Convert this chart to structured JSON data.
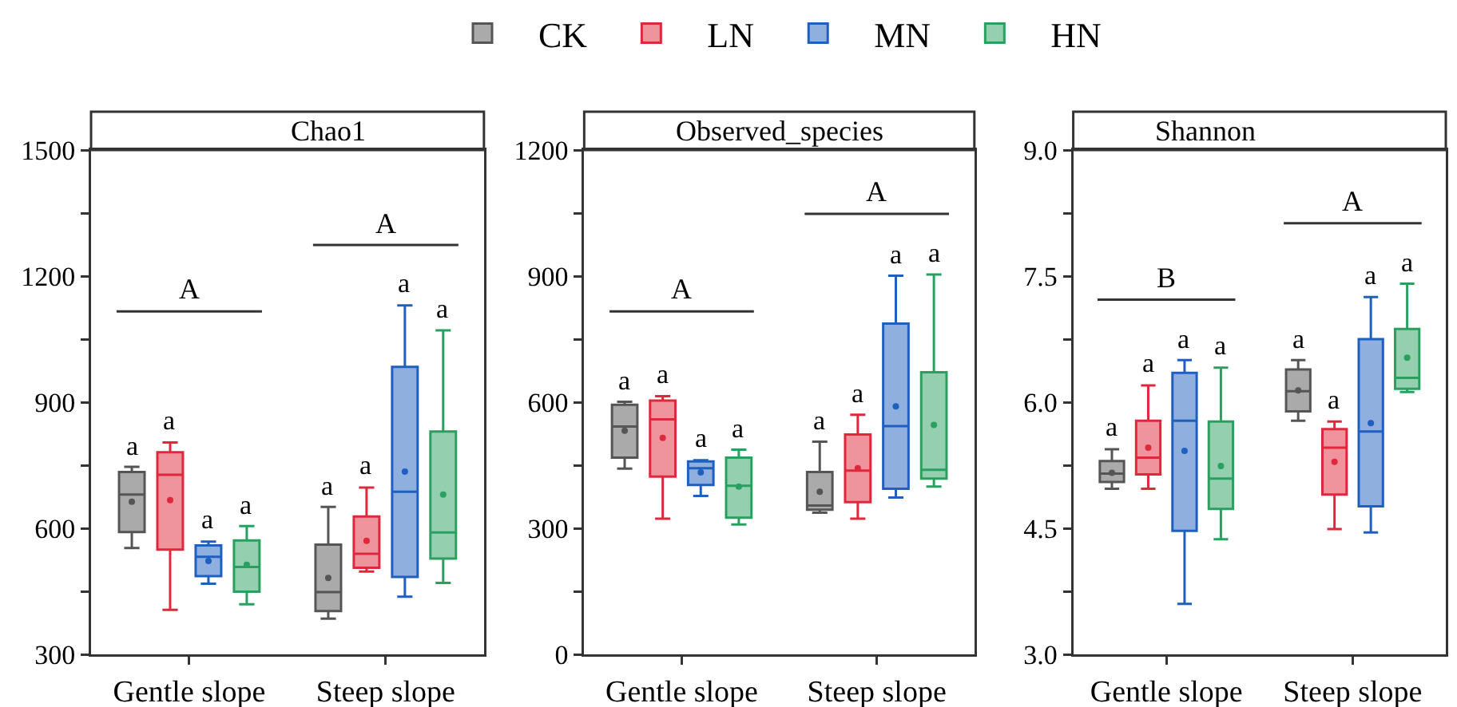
{
  "chart_data": [
    {
      "type": "box",
      "title": "Chao1",
      "categories": [
        "Gentle slope",
        "Steep slope"
      ],
      "legend": "top",
      "ylim": [
        300,
        1500
      ],
      "yticks": [
        300,
        {
          "value": 450,
          "label": null
        },
        600,
        {
          "value": 750,
          "label": null
        },
        900,
        {
          "value": 1050,
          "label": null
        },
        1200,
        {
          "value": 1350,
          "label": null
        },
        1500
      ],
      "series": [
        {
          "name": "CK",
          "color": "#555555",
          "value_labels": [
            "a",
            "a"
          ],
          "boxes": [
            {
              "low": 553,
              "q1": 591,
              "median": 680,
              "q3": 734,
              "high": 746,
              "mean": 663
            },
            {
              "low": 385,
              "q1": 403,
              "median": 448,
              "q3": 561,
              "high": 651,
              "mean": 482
            }
          ]
        },
        {
          "name": "LN",
          "color": "#e0283c",
          "value_labels": [
            "a",
            "a"
          ],
          "boxes": [
            {
              "low": 406,
              "q1": 549,
              "median": 727,
              "q3": 781,
              "high": 804,
              "mean": 667
            },
            {
              "low": 497,
              "q1": 506,
              "median": 539,
              "q3": 628,
              "high": 697,
              "mean": 570
            }
          ]
        },
        {
          "name": "MN",
          "color": "#1f5fbf",
          "value_labels": [
            "a",
            "a"
          ],
          "boxes": [
            {
              "low": 468,
              "q1": 486,
              "median": 532,
              "q3": 559,
              "high": 568,
              "mean": 522
            },
            {
              "low": 437,
              "q1": 484,
              "median": 687,
              "q3": 984,
              "high": 1130,
              "mean": 735
            }
          ]
        },
        {
          "name": "HN",
          "color": "#2aa060",
          "value_labels": [
            "a",
            "a"
          ],
          "boxes": [
            {
              "low": 419,
              "q1": 449,
              "median": 508,
              "q3": 571,
              "high": 605,
              "mean": 513
            },
            {
              "low": 470,
              "q1": 528,
              "median": 590,
              "q3": 830,
              "high": 1071,
              "mean": 680
            }
          ]
        }
      ],
      "annotations": [
        "A",
        "A"
      ]
    },
    {
      "type": "box",
      "title": "Observed_species",
      "categories": [
        "Gentle slope",
        "Steep slope"
      ],
      "legend": "top",
      "ylim": [
        0,
        1200
      ],
      "yticks": [
        0,
        {
          "value": 150,
          "label": null
        },
        300,
        {
          "value": 450,
          "label": null
        },
        600,
        {
          "value": 750,
          "label": null
        },
        900,
        {
          "value": 1050,
          "label": null
        },
        1200
      ],
      "series": [
        {
          "name": "CK",
          "color": "#555555",
          "value_labels": [
            "a",
            "a"
          ],
          "boxes": [
            {
              "low": 442,
              "q1": 468,
              "median": 542,
              "q3": 594,
              "high": 601,
              "mean": 532
            },
            {
              "low": 337,
              "q1": 344,
              "median": 354,
              "q3": 434,
              "high": 506,
              "mean": 387
            }
          ]
        },
        {
          "name": "LN",
          "color": "#e0283c",
          "value_labels": [
            "a",
            "a"
          ],
          "boxes": [
            {
              "low": 323,
              "q1": 423,
              "median": 559,
              "q3": 604,
              "high": 614,
              "mean": 515
            },
            {
              "low": 323,
              "q1": 362,
              "median": 437,
              "q3": 523,
              "high": 570,
              "mean": 443
            }
          ]
        },
        {
          "name": "MN",
          "color": "#1f5fbf",
          "value_labels": [
            "a",
            "a"
          ],
          "boxes": [
            {
              "low": 377,
              "q1": 403,
              "median": 443,
              "q3": 459,
              "high": 462,
              "mean": 433
            },
            {
              "low": 373,
              "q1": 394,
              "median": 543,
              "q3": 787,
              "high": 901,
              "mean": 590
            }
          ]
        },
        {
          "name": "HN",
          "color": "#2aa060",
          "value_labels": [
            "a",
            "a"
          ],
          "boxes": [
            {
              "low": 309,
              "q1": 325,
              "median": 401,
              "q3": 468,
              "high": 487,
              "mean": 399
            },
            {
              "low": 399,
              "q1": 418,
              "median": 439,
              "q3": 671,
              "high": 904,
              "mean": 546
            }
          ]
        }
      ],
      "annotations": [
        "A",
        "A"
      ]
    },
    {
      "type": "box",
      "title": "Shannon",
      "categories": [
        "Gentle slope",
        "Steep slope"
      ],
      "legend": "top",
      "ylim": [
        3.0,
        9.0
      ],
      "yticks": [
        {
          "value": 3,
          "label": "3.0"
        },
        {
          "value": 3.75,
          "label": null
        },
        4.5,
        {
          "value": 5.25,
          "label": null
        },
        {
          "value": 6,
          "label": "6.0"
        },
        {
          "value": 6.75,
          "label": null
        },
        7.5,
        {
          "value": 8.25,
          "label": null
        },
        {
          "value": 9,
          "label": "9.0"
        }
      ],
      "series": [
        {
          "name": "CK",
          "color": "#555555",
          "value_labels": [
            "a",
            "a"
          ],
          "boxes": [
            {
              "low": 4.97,
              "q1": 5.05,
              "median": 5.15,
              "q3": 5.3,
              "high": 5.44,
              "mean": 5.16
            },
            {
              "low": 5.78,
              "q1": 5.89,
              "median": 6.13,
              "q3": 6.39,
              "high": 6.5,
              "mean": 6.14
            }
          ]
        },
        {
          "name": "LN",
          "color": "#e0283c",
          "value_labels": [
            "a",
            "a"
          ],
          "boxes": [
            {
              "low": 4.97,
              "q1": 5.14,
              "median": 5.34,
              "q3": 5.78,
              "high": 6.2,
              "mean": 5.46
            },
            {
              "low": 4.49,
              "q1": 4.9,
              "median": 5.46,
              "q3": 5.68,
              "high": 5.77,
              "mean": 5.29
            }
          ]
        },
        {
          "name": "MN",
          "color": "#1f5fbf",
          "value_labels": [
            "a",
            "a"
          ],
          "boxes": [
            {
              "low": 3.6,
              "q1": 4.47,
              "median": 5.78,
              "q3": 6.35,
              "high": 6.5,
              "mean": 5.42
            },
            {
              "low": 4.45,
              "q1": 4.76,
              "median": 5.65,
              "q3": 6.75,
              "high": 7.25,
              "mean": 5.75
            }
          ]
        },
        {
          "name": "HN",
          "color": "#2aa060",
          "value_labels": [
            "a",
            "a"
          ],
          "boxes": [
            {
              "low": 4.37,
              "q1": 4.73,
              "median": 5.09,
              "q3": 5.77,
              "high": 6.41,
              "mean": 5.24
            },
            {
              "low": 6.12,
              "q1": 6.16,
              "median": 6.29,
              "q3": 6.87,
              "high": 7.41,
              "mean": 6.53
            }
          ]
        }
      ],
      "annotations": [
        "B",
        "A"
      ]
    }
  ]
}
